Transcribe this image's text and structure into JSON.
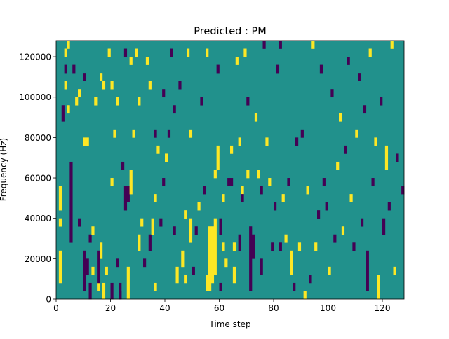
{
  "chart_data": {
    "type": "heatmap",
    "title": "Predicted : PM",
    "xlabel": "Time step",
    "ylabel": "Frequency (Hz)",
    "xlim": [
      0,
      128
    ],
    "ylim": [
      0,
      128000
    ],
    "n_freq_bins": 32,
    "xticks": [
      "0",
      "20",
      "40",
      "60",
      "80",
      "100",
      "120"
    ],
    "yticks": [
      "0",
      "20000",
      "40000",
      "60000",
      "80000",
      "100000",
      "120000"
    ],
    "colors": {
      "background": "#21918c",
      "high": "#fde725",
      "low": "#440154"
    },
    "background_value": 0,
    "cells_format": "[time_step, bin_start, bin_end, value]",
    "cells": [
      [
        1,
        2,
        5,
        1
      ],
      [
        1,
        11,
        13,
        1
      ],
      [
        1,
        9,
        9,
        1
      ],
      [
        2,
        22,
        23,
        -1
      ],
      [
        3,
        30,
        30,
        1
      ],
      [
        3,
        26,
        26,
        1
      ],
      [
        3,
        28,
        28,
        -1
      ],
      [
        4,
        31,
        31,
        1
      ],
      [
        4,
        23,
        23,
        1
      ],
      [
        5,
        11,
        16,
        -1
      ],
      [
        5,
        7,
        10,
        -1
      ],
      [
        6,
        28,
        28,
        -1
      ],
      [
        7,
        24,
        24,
        1
      ],
      [
        8,
        9,
        9,
        -1
      ],
      [
        8,
        25,
        25,
        1
      ],
      [
        10,
        27,
        27,
        -1
      ],
      [
        10,
        19,
        19,
        1
      ],
      [
        11,
        19,
        19,
        1
      ],
      [
        10,
        1,
        5,
        -1
      ],
      [
        11,
        3,
        4,
        -1
      ],
      [
        12,
        0,
        1,
        -1
      ],
      [
        12,
        7,
        7,
        -1
      ],
      [
        13,
        3,
        3,
        1
      ],
      [
        13,
        8,
        8,
        1
      ],
      [
        14,
        24,
        24,
        1
      ],
      [
        15,
        1,
        1,
        1
      ],
      [
        15,
        2,
        5,
        -1
      ],
      [
        16,
        5,
        6,
        1
      ],
      [
        16,
        27,
        27,
        1
      ],
      [
        17,
        26,
        26,
        1
      ],
      [
        17,
        0,
        1,
        1
      ],
      [
        18,
        3,
        3,
        1
      ],
      [
        19,
        30,
        30,
        1
      ],
      [
        20,
        26,
        26,
        1
      ],
      [
        20,
        14,
        14,
        1
      ],
      [
        20,
        0,
        1,
        -1
      ],
      [
        21,
        20,
        20,
        1
      ],
      [
        22,
        24,
        24,
        1
      ],
      [
        22,
        4,
        4,
        -1
      ],
      [
        23,
        0,
        0,
        -1
      ],
      [
        23,
        0,
        1,
        -1
      ],
      [
        24,
        16,
        16,
        -1
      ],
      [
        25,
        30,
        30,
        -1
      ],
      [
        25,
        11,
        13,
        -1
      ],
      [
        26,
        12,
        13,
        -1
      ],
      [
        26,
        0,
        3,
        1
      ],
      [
        27,
        29,
        29,
        1
      ],
      [
        27,
        13,
        15,
        1
      ],
      [
        28,
        20,
        20,
        1
      ],
      [
        29,
        30,
        30,
        1
      ],
      [
        30,
        6,
        7,
        1
      ],
      [
        30,
        24,
        24,
        1
      ],
      [
        31,
        9,
        9,
        1
      ],
      [
        32,
        4,
        4,
        -1
      ],
      [
        33,
        29,
        29,
        1
      ],
      [
        34,
        6,
        7,
        -1
      ],
      [
        34,
        26,
        26,
        1
      ],
      [
        35,
        8,
        9,
        1
      ],
      [
        36,
        1,
        1,
        1
      ],
      [
        36,
        20,
        20,
        -1
      ],
      [
        36,
        12,
        12,
        1
      ],
      [
        37,
        18,
        18,
        1
      ],
      [
        38,
        9,
        9,
        -1
      ],
      [
        39,
        14,
        14,
        -1
      ],
      [
        39,
        25,
        25,
        -1
      ],
      [
        40,
        17,
        17,
        1
      ],
      [
        41,
        20,
        20,
        -1
      ],
      [
        42,
        30,
        30,
        -1
      ],
      [
        43,
        8,
        8,
        -1
      ],
      [
        43,
        23,
        23,
        -1
      ],
      [
        44,
        2,
        3,
        1
      ],
      [
        45,
        26,
        26,
        -1
      ],
      [
        46,
        4,
        5,
        1
      ],
      [
        47,
        10,
        10,
        1
      ],
      [
        47,
        2,
        2,
        1
      ],
      [
        48,
        30,
        30,
        1
      ],
      [
        49,
        7,
        9,
        1
      ],
      [
        49,
        20,
        20,
        1
      ],
      [
        50,
        3,
        3,
        -1
      ],
      [
        51,
        8,
        8,
        -1
      ],
      [
        52,
        11,
        11,
        1
      ],
      [
        53,
        24,
        24,
        -1
      ],
      [
        54,
        13,
        13,
        -1
      ],
      [
        55,
        1,
        2,
        1
      ],
      [
        55,
        30,
        30,
        1
      ],
      [
        56,
        1,
        8,
        1
      ],
      [
        57,
        2,
        8,
        1
      ],
      [
        58,
        3,
        9,
        1
      ],
      [
        58,
        15,
        15,
        1
      ],
      [
        59,
        16,
        18,
        1
      ],
      [
        59,
        28,
        28,
        -1
      ],
      [
        60,
        8,
        9,
        -1
      ],
      [
        60,
        1,
        1,
        -1
      ],
      [
        61,
        6,
        6,
        1
      ],
      [
        61,
        12,
        12,
        1
      ],
      [
        62,
        4,
        4,
        1
      ],
      [
        63,
        14,
        14,
        -1
      ],
      [
        64,
        14,
        14,
        -1
      ],
      [
        64,
        18,
        18,
        1
      ],
      [
        65,
        6,
        6,
        1
      ],
      [
        65,
        2,
        3,
        1
      ],
      [
        66,
        29,
        29,
        1
      ],
      [
        67,
        19,
        19,
        1
      ],
      [
        67,
        6,
        7,
        -1
      ],
      [
        68,
        13,
        13,
        1
      ],
      [
        68,
        12,
        12,
        -1
      ],
      [
        69,
        30,
        30,
        1
      ],
      [
        70,
        15,
        15,
        1
      ],
      [
        70,
        24,
        24,
        -1
      ],
      [
        71,
        1,
        8,
        -1
      ],
      [
        72,
        5,
        7,
        -1
      ],
      [
        73,
        22,
        22,
        1
      ],
      [
        74,
        15,
        15,
        1
      ],
      [
        75,
        3,
        4,
        -1
      ],
      [
        75,
        13,
        13,
        -1
      ],
      [
        76,
        31,
        31,
        -1
      ],
      [
        77,
        19,
        19,
        1
      ],
      [
        78,
        14,
        14,
        1
      ],
      [
        79,
        6,
        6,
        -1
      ],
      [
        80,
        11,
        11,
        -1
      ],
      [
        81,
        28,
        28,
        -1
      ],
      [
        82,
        31,
        31,
        -1
      ],
      [
        82,
        6,
        6,
        -1
      ],
      [
        83,
        12,
        12,
        1
      ],
      [
        84,
        7,
        7,
        1
      ],
      [
        85,
        14,
        14,
        -1
      ],
      [
        86,
        3,
        5,
        1
      ],
      [
        87,
        1,
        1,
        -1
      ],
      [
        88,
        19,
        19,
        -1
      ],
      [
        89,
        6,
        6,
        1
      ],
      [
        90,
        20,
        20,
        -1
      ],
      [
        91,
        0,
        0,
        1
      ],
      [
        92,
        13,
        13,
        1
      ],
      [
        93,
        2,
        2,
        -1
      ],
      [
        94,
        31,
        31,
        1
      ],
      [
        95,
        6,
        6,
        1
      ],
      [
        96,
        10,
        10,
        -1
      ],
      [
        97,
        28,
        28,
        -1
      ],
      [
        98,
        14,
        14,
        -1
      ],
      [
        99,
        11,
        11,
        -1
      ],
      [
        100,
        3,
        3,
        1
      ],
      [
        101,
        25,
        25,
        -1
      ],
      [
        102,
        7,
        7,
        -1
      ],
      [
        103,
        16,
        16,
        1
      ],
      [
        104,
        22,
        22,
        1
      ],
      [
        105,
        8,
        8,
        1
      ],
      [
        106,
        18,
        18,
        -1
      ],
      [
        107,
        29,
        29,
        -1
      ],
      [
        108,
        12,
        12,
        1
      ],
      [
        109,
        6,
        6,
        -1
      ],
      [
        110,
        20,
        20,
        1
      ],
      [
        111,
        27,
        27,
        -1
      ],
      [
        112,
        9,
        9,
        -1
      ],
      [
        113,
        23,
        23,
        -1
      ],
      [
        114,
        1,
        5,
        -1
      ],
      [
        115,
        30,
        30,
        1
      ],
      [
        116,
        14,
        14,
        -1
      ],
      [
        117,
        19,
        19,
        1
      ],
      [
        118,
        0,
        2,
        1
      ],
      [
        119,
        24,
        24,
        -1
      ],
      [
        120,
        8,
        9,
        -1
      ],
      [
        121,
        16,
        18,
        1
      ],
      [
        122,
        11,
        11,
        -1
      ],
      [
        123,
        31,
        31,
        1
      ],
      [
        124,
        3,
        3,
        1
      ],
      [
        125,
        17,
        17,
        -1
      ],
      [
        127,
        13,
        13,
        -1
      ]
    ]
  }
}
